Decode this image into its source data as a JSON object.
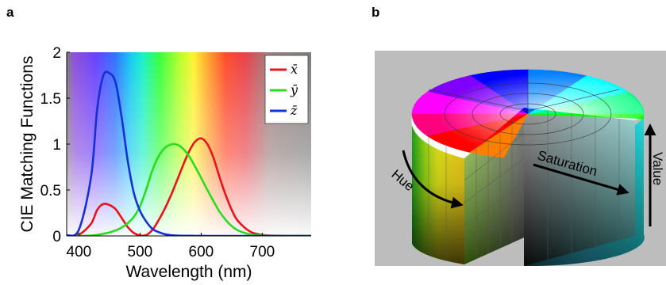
{
  "panels": {
    "a_label": "a",
    "b_label": "b"
  },
  "chart_data": [
    {
      "type": "line",
      "title": "",
      "xlabel": "Wavelength (nm)",
      "ylabel": "CIE Matching Functions",
      "xlim": [
        380,
        780
      ],
      "ylim": [
        0,
        2
      ],
      "xticks": [
        400,
        500,
        600,
        700
      ],
      "yticks": [
        0,
        0.5,
        1,
        1.5,
        2
      ],
      "ytick_labels": [
        "0",
        "0.5",
        "1",
        "1.5",
        "2"
      ],
      "background": "visible-spectrum gradient",
      "legend_position": "top-right",
      "x": [
        380,
        400,
        420,
        430,
        440,
        450,
        460,
        470,
        480,
        490,
        500,
        510,
        520,
        530,
        540,
        550,
        560,
        570,
        580,
        590,
        600,
        610,
        620,
        630,
        640,
        650,
        660,
        680,
        700,
        720,
        780
      ],
      "series": [
        {
          "name": "x̄",
          "color": "#e8141b",
          "values": [
            0.001,
            0.014,
            0.134,
            0.284,
            0.348,
            0.336,
            0.291,
            0.195,
            0.096,
            0.032,
            0.005,
            0.009,
            0.063,
            0.166,
            0.29,
            0.433,
            0.595,
            0.762,
            0.916,
            1.026,
            1.062,
            1.003,
            0.854,
            0.642,
            0.448,
            0.284,
            0.165,
            0.047,
            0.011,
            0.003,
            0.0
          ]
        },
        {
          "name": "ȳ",
          "color": "#2adc1e",
          "values": [
            0.0,
            0.0004,
            0.004,
            0.012,
            0.023,
            0.038,
            0.06,
            0.091,
            0.139,
            0.208,
            0.323,
            0.503,
            0.71,
            0.862,
            0.954,
            0.995,
            0.995,
            0.952,
            0.87,
            0.757,
            0.631,
            0.503,
            0.381,
            0.265,
            0.175,
            0.107,
            0.061,
            0.017,
            0.004,
            0.001,
            0.0
          ]
        },
        {
          "name": "z̄",
          "color": "#1730d6",
          "values": [
            0.006,
            0.068,
            0.646,
            1.386,
            1.747,
            1.772,
            1.669,
            1.288,
            0.813,
            0.465,
            0.272,
            0.158,
            0.078,
            0.042,
            0.02,
            0.009,
            0.004,
            0.002,
            0.002,
            0.001,
            0.001,
            0.0,
            0.0,
            0.0,
            0.0,
            0.0,
            0.0,
            0.0,
            0.0,
            0.0,
            0.0
          ]
        }
      ]
    }
  ],
  "hsv_figure": {
    "hue_label": "Hue",
    "saturation_label": "Saturation",
    "value_label": "Value"
  }
}
